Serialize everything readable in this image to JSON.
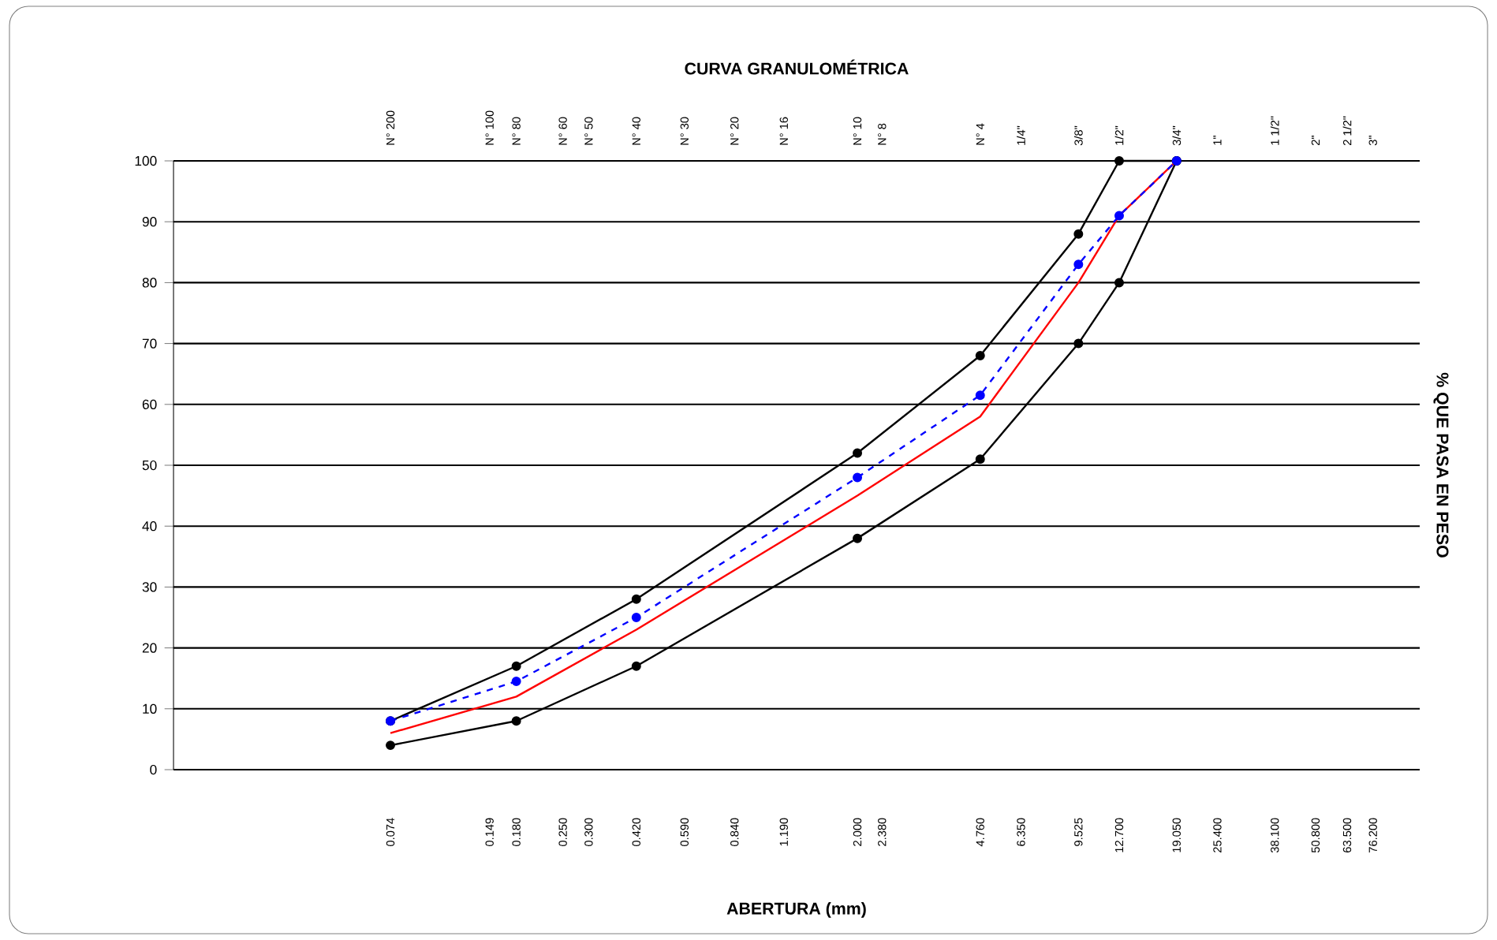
{
  "chart_data": {
    "type": "line",
    "title": "CURVA GRANULOMÉTRICA",
    "xlabel": "ABERTURA (mm)",
    "ylabel": "% QUE PASA  EN PESO",
    "log": "x",
    "grid": "y",
    "xlim": [
      0.016,
      106
    ],
    "ylim": [
      0,
      100
    ],
    "yticks": [
      0,
      10,
      20,
      30,
      40,
      50,
      60,
      70,
      80,
      90,
      100
    ],
    "xticks": [
      {
        "value": 0.074,
        "label": "0.074"
      },
      {
        "value": 0.149,
        "label": "0.149"
      },
      {
        "value": 0.18,
        "label": "0.180"
      },
      {
        "value": 0.25,
        "label": "0.250"
      },
      {
        "value": 0.3,
        "label": "0.300"
      },
      {
        "value": 0.42,
        "label": "0.420"
      },
      {
        "value": 0.59,
        "label": "0.590"
      },
      {
        "value": 0.84,
        "label": "0.840"
      },
      {
        "value": 1.19,
        "label": "1.190"
      },
      {
        "value": 2.0,
        "label": "2.000"
      },
      {
        "value": 2.38,
        "label": "2.380"
      },
      {
        "value": 4.76,
        "label": "4.760"
      },
      {
        "value": 6.35,
        "label": "6.350"
      },
      {
        "value": 9.525,
        "label": "9.525"
      },
      {
        "value": 12.7,
        "label": "12.700"
      },
      {
        "value": 19.05,
        "label": "19.050"
      },
      {
        "value": 25.4,
        "label": "25.400"
      },
      {
        "value": 38.1,
        "label": "38.100"
      },
      {
        "value": 50.8,
        "label": "50.800"
      },
      {
        "value": 63.5,
        "label": "63.500"
      },
      {
        "value": 76.2,
        "label": "76.200"
      }
    ],
    "annotations": [
      "N° 200",
      "N° 100",
      "N° 80",
      "N° 60",
      "N° 50",
      "N° 40",
      "N° 30",
      "N° 20",
      "N° 16",
      "N° 10",
      "N° 8",
      "N° 4",
      "1/4\"",
      "3/8\"",
      "1/2\"",
      "3/4\"",
      "1\"",
      "1 1/2\"",
      "2\"",
      "2 1/2\"",
      "3\""
    ],
    "x": [
      0.074,
      0.18,
      0.42,
      2.0,
      4.76,
      9.525,
      12.7,
      19.05
    ],
    "series": [
      {
        "color": "#000000",
        "marker": "circle",
        "line_style": "solid",
        "values": [
          8,
          17,
          28,
          52,
          68,
          88,
          100,
          100
        ]
      },
      {
        "color": "#000000",
        "marker": "circle",
        "line_style": "solid",
        "values": [
          4,
          8,
          17,
          38,
          51,
          70,
          80,
          100
        ]
      },
      {
        "color": "#ff0000",
        "marker": "none",
        "line_style": "solid",
        "values": [
          6,
          12,
          23,
          45,
          58,
          80,
          91,
          100
        ]
      },
      {
        "color": "#0000ff",
        "marker": "circle",
        "line_style": "dashed",
        "values": [
          8,
          14.5,
          25,
          48,
          61.5,
          83,
          91,
          100
        ]
      }
    ]
  }
}
